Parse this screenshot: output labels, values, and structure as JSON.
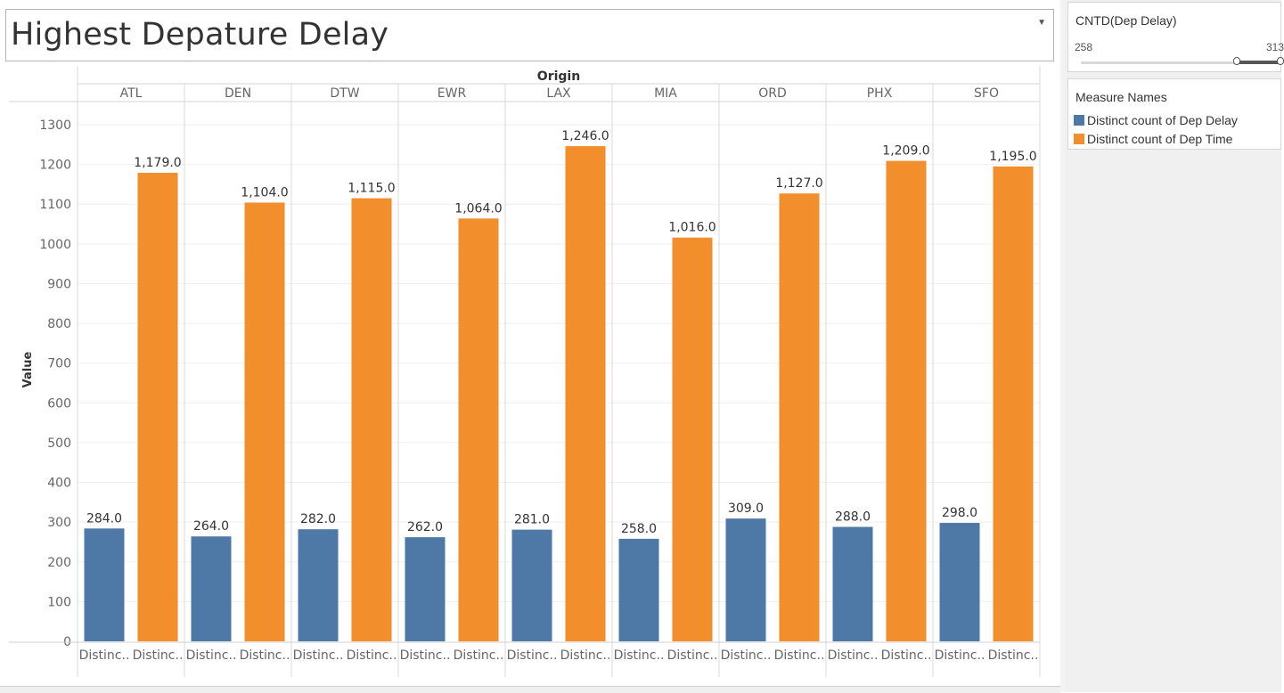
{
  "title": "Highest Depature Delay",
  "filter": {
    "title": "CNTD(Dep Delay)",
    "min": "258",
    "max": "313",
    "range": [
      258,
      313
    ]
  },
  "legend": {
    "title": "Measure Names",
    "items": [
      {
        "label": "Distinct count of Dep Delay",
        "color": "#4e79a7"
      },
      {
        "label": "Distinct count of Dep Time",
        "color": "#f28e2b"
      }
    ]
  },
  "chart_data": {
    "type": "bar",
    "column_header_title": "Origin",
    "categories": [
      "ATL",
      "DEN",
      "DTW",
      "EWR",
      "LAX",
      "MIA",
      "ORD",
      "PHX",
      "SFO"
    ],
    "bar_labels": [
      "Distinc..",
      "Distinc.."
    ],
    "ylabel": "Value",
    "ylim": [
      0,
      1350
    ],
    "yticks": [
      0,
      100,
      200,
      300,
      400,
      500,
      600,
      700,
      800,
      900,
      1000,
      1100,
      1200,
      1300
    ],
    "series": [
      {
        "name": "Distinct count of Dep Delay",
        "color": "#4e79a7",
        "values": [
          284,
          264,
          282,
          262,
          281,
          258,
          309,
          288,
          298
        ],
        "labels": [
          "284.0",
          "264.0",
          "282.0",
          "262.0",
          "281.0",
          "258.0",
          "309.0",
          "288.0",
          "298.0"
        ]
      },
      {
        "name": "Distinct count of Dep Time",
        "color": "#f28e2b",
        "values": [
          1179,
          1104,
          1115,
          1064,
          1246,
          1016,
          1127,
          1209,
          1195
        ],
        "labels": [
          "1,179.0",
          "1,104.0",
          "1,115.0",
          "1,064.0",
          "1,246.0",
          "1,016.0",
          "1,127.0",
          "1,209.0",
          "1,195.0"
        ]
      }
    ],
    "grid": true,
    "legend_position": "right"
  }
}
